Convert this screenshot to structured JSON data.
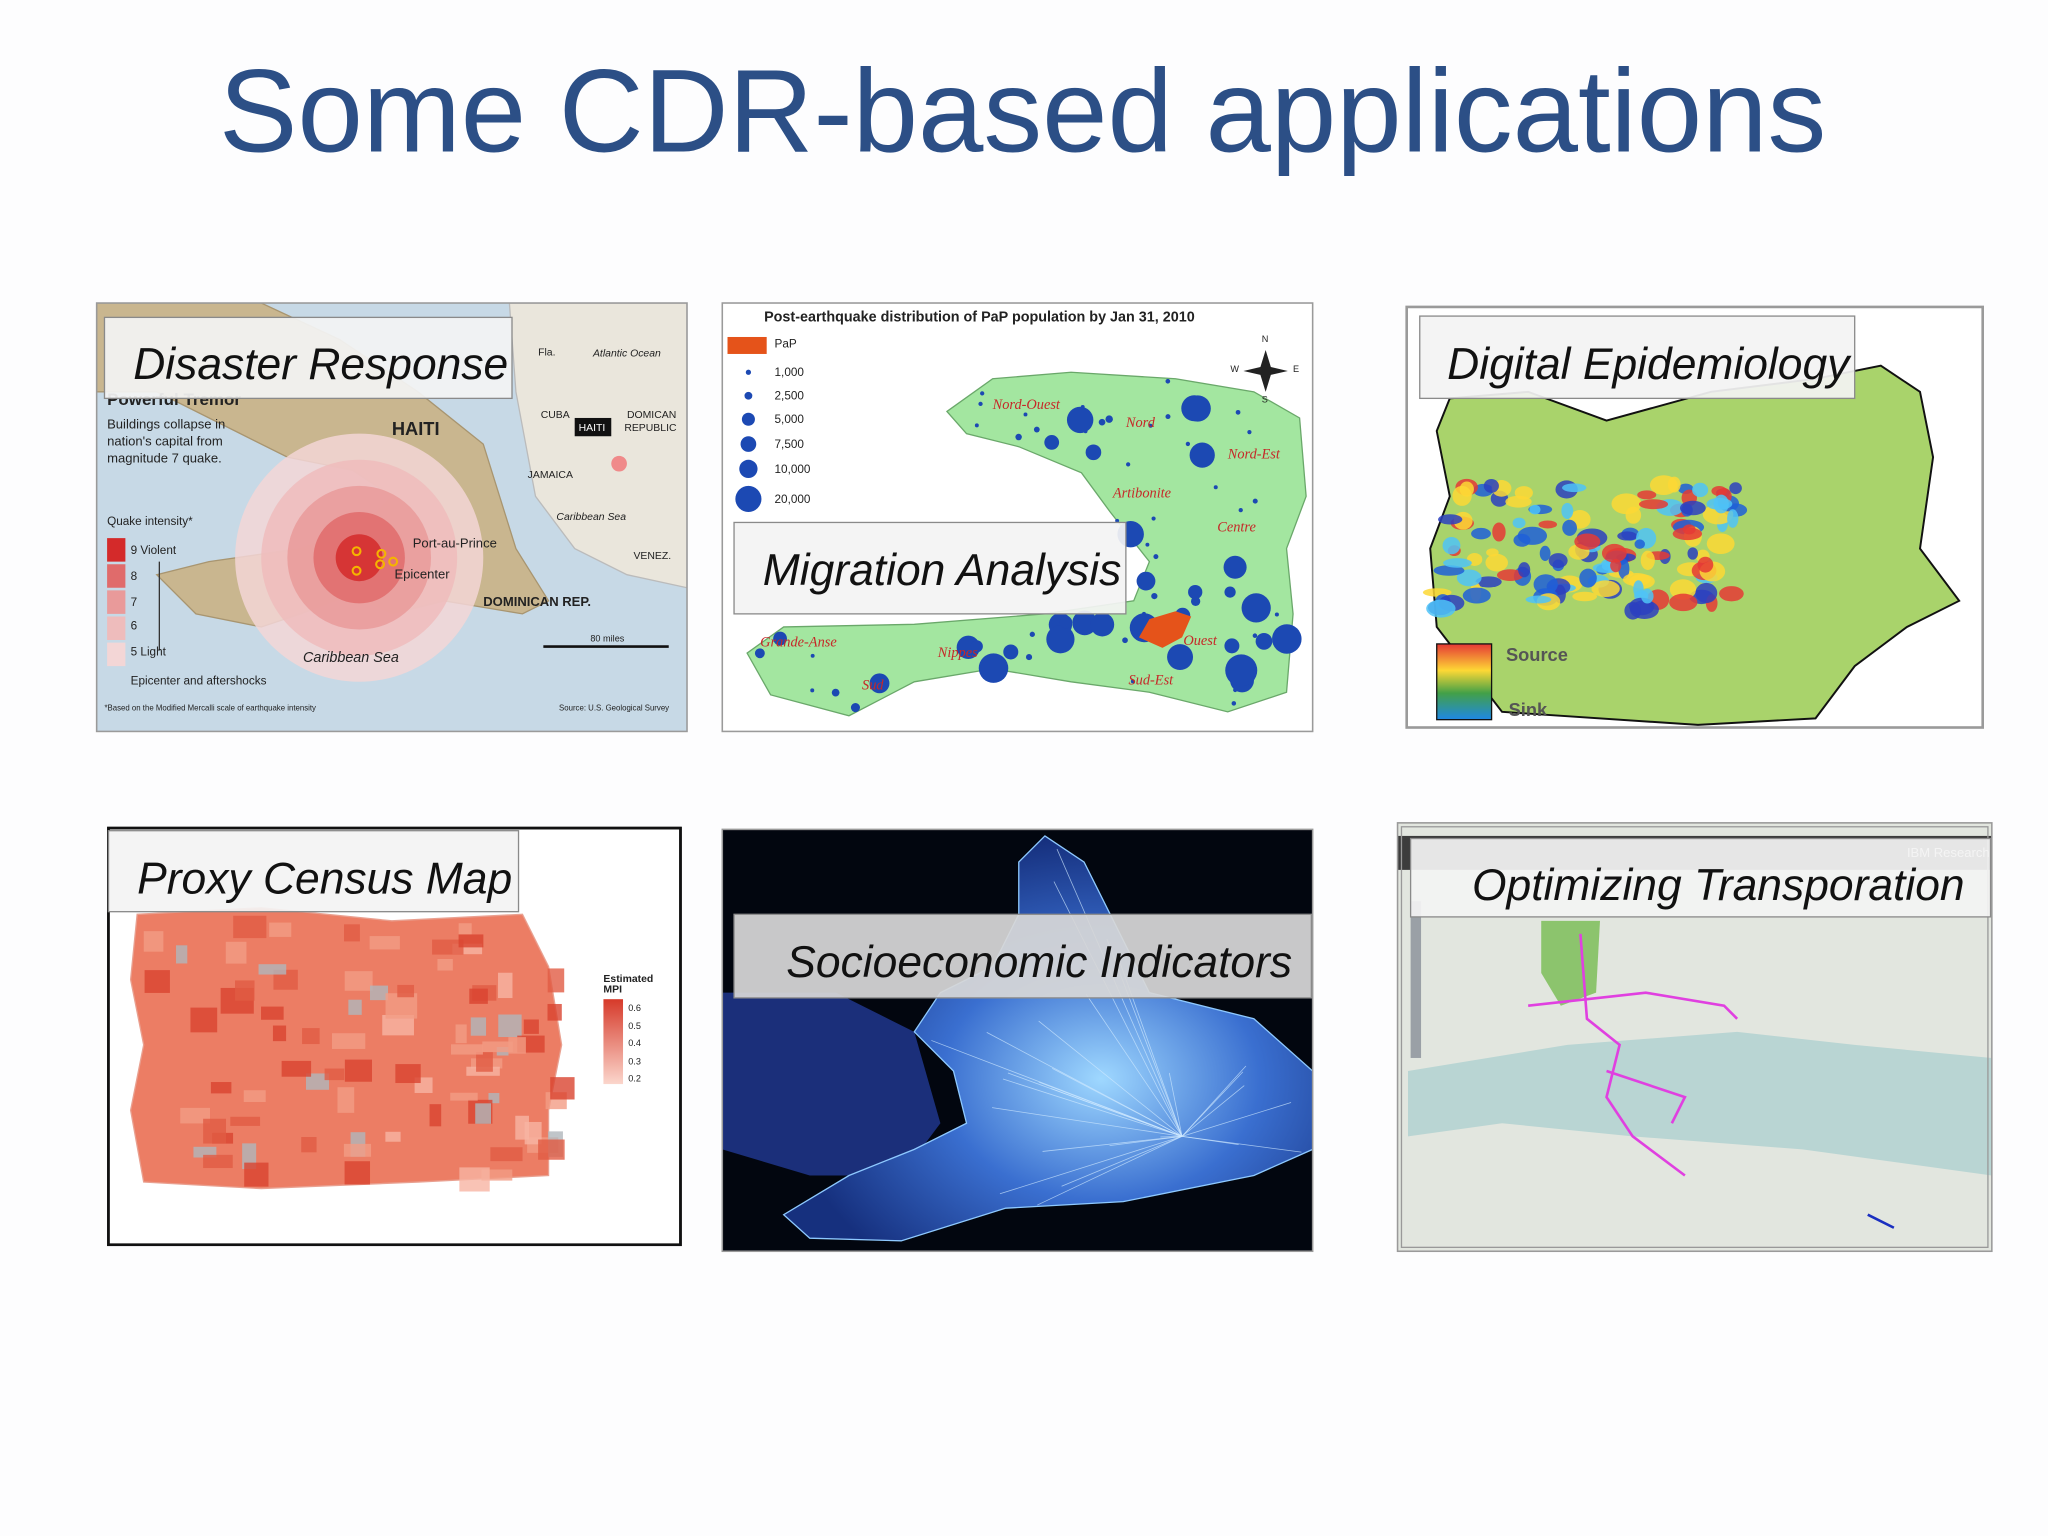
{
  "title": "Some CDR-based applications",
  "panels": [
    {
      "label": "Disaster Response",
      "texts": [
        "Powerful Tremor",
        "Buildings collapse in",
        "nation's capital from",
        "magnitude 7 quake.",
        "HAITI",
        "Quake intensity*",
        "9  Violent",
        "8",
        "7",
        "6",
        "5  Light",
        "Epicenter and aftershocks",
        "Port-au-Prince",
        "Epicenter",
        "Caribbean Sea",
        "DOMINICAN REP.",
        "CUBA",
        "JAMAICA",
        "Atlantic Ocean",
        "Caribbean Sea",
        "DOMICAN",
        "REPUBLIC",
        "HAITI",
        "VENEZ.",
        "80 miles",
        "*Based on the Modified Mercalli scale of earthquake intensity",
        "Source: U.S. Geological Survey",
        "Fla."
      ]
    },
    {
      "label": "Migration Analysis",
      "texts": [
        "Post-earthquake distribution of PaP population by Jan 31, 2010",
        "PaP",
        "1,000",
        "2,500",
        "5,000",
        "7,500",
        "10,000",
        "20,000",
        "Nord-Ouest",
        "Nord",
        "Nord-Est",
        "Artibonite",
        "Centre",
        "Ouest",
        "Sud-Est",
        "Nippes",
        "Grande-Anse",
        "Sud",
        "N",
        "S",
        "E",
        "W"
      ]
    },
    {
      "label": "Digital Epidemiology",
      "texts": [
        "Source",
        "Sink"
      ]
    },
    {
      "label": "Proxy Census Map",
      "texts": [
        "Estimated",
        "MPI",
        "0.6",
        "0.5",
        "0.4",
        "0.3",
        "0.2"
      ]
    },
    {
      "label": "Socioeconomic Indicators",
      "texts": []
    },
    {
      "label": "Optimizing Transporation",
      "texts": [
        "IBM Research"
      ]
    }
  ]
}
